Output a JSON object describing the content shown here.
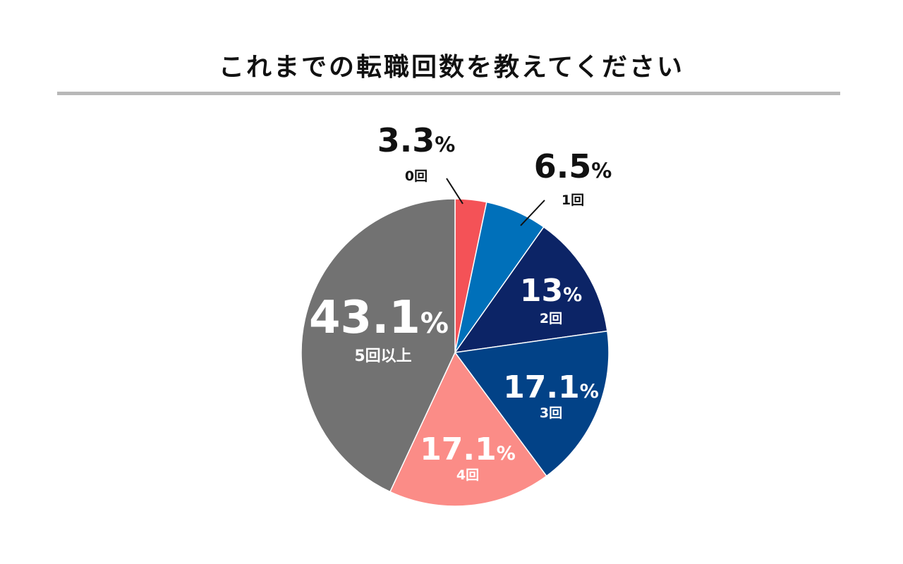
{
  "title": "これまでの転職回数を教えてください",
  "chart_data": {
    "type": "pie",
    "title": "これまでの転職回数を教えてください",
    "slices": [
      {
        "label": "0回",
        "value": 3.3,
        "display": "3.3",
        "unit": "%",
        "color": "#f45257",
        "label_color": "#111111",
        "placement": "outside"
      },
      {
        "label": "1回",
        "value": 6.5,
        "display": "6.5",
        "unit": "%",
        "color": "#0070ba",
        "label_color": "#111111",
        "placement": "outside"
      },
      {
        "label": "2回",
        "value": 13,
        "display": "13",
        "unit": "%",
        "color": "#0c2466",
        "label_color": "#ffffff",
        "placement": "inside"
      },
      {
        "label": "3回",
        "value": 17.1,
        "display": "17.1",
        "unit": "%",
        "color": "#024287",
        "label_color": "#ffffff",
        "placement": "inside"
      },
      {
        "label": "4回",
        "value": 17.1,
        "display": "17.1",
        "unit": "%",
        "color": "#fb8c87",
        "label_color": "#ffffff",
        "placement": "inside"
      },
      {
        "label": "5回以上",
        "value": 43.1,
        "display": "43.1",
        "unit": "%",
        "color": "#727272",
        "label_color": "#ffffff",
        "placement": "inside"
      }
    ],
    "start_angle": "top",
    "direction": "clockwise"
  }
}
